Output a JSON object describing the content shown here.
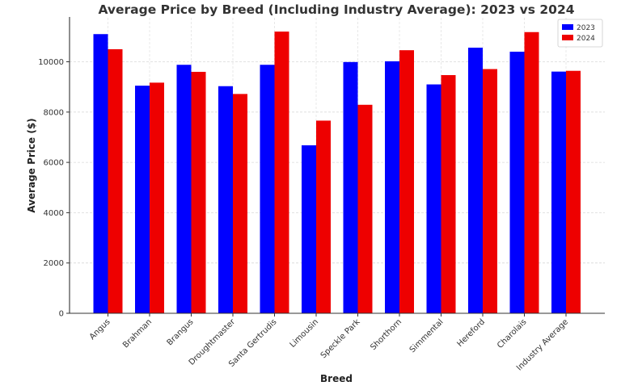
{
  "chart_data": {
    "type": "bar",
    "title": "Average Price by Breed (Including Industry Average): 2023 vs 2024",
    "xlabel": "Breed",
    "ylabel": "Average Price ($)",
    "categories": [
      "Angus",
      "Brahman",
      "Brangus",
      "Droughtmaster",
      "Santa Gertrudis",
      "Limousin",
      "Speckle Park",
      "Shorthorn",
      "Simmental",
      "Hereford",
      "Charolais",
      "Industry Average"
    ],
    "series": [
      {
        "name": "2023",
        "color": "#0000ff",
        "values": [
          11100,
          9050,
          9880,
          9030,
          9880,
          6680,
          9990,
          10020,
          9100,
          10560,
          10400,
          9610
        ]
      },
      {
        "name": "2024",
        "color": "#ee0000",
        "values": [
          10500,
          9170,
          9600,
          8720,
          11200,
          7660,
          8290,
          10460,
          9470,
          9710,
          11180,
          9640
        ]
      }
    ],
    "ylim": [
      0,
      11750
    ],
    "yticks": [
      0,
      2000,
      4000,
      6000,
      8000,
      10000
    ],
    "grid": true,
    "legend_position": "top-right"
  }
}
